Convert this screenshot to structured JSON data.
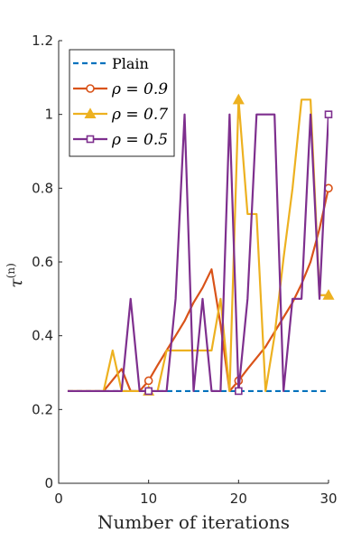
{
  "chart_data": {
    "type": "line",
    "title": "",
    "xlabel": "Number of iterations",
    "ylabel": "τ",
    "ylabel_superscript": "(n)",
    "xlim": [
      0,
      30
    ],
    "ylim": [
      0,
      1.2
    ],
    "xticks": [
      "0",
      "10",
      "20",
      "30"
    ],
    "yticks": [
      "0",
      "0.2",
      "0.4",
      "0.6",
      "0.8",
      "1",
      "1.2"
    ],
    "grid": false,
    "legend_position": "top-left",
    "series": [
      {
        "name": "Plain",
        "color": "#0072BD",
        "style": "dashed",
        "marker": "none",
        "x": [
          1,
          30
        ],
        "y": [
          0.25,
          0.25
        ]
      },
      {
        "name": "ρ = 0.9",
        "color": "#D95319",
        "style": "solid",
        "marker": "circle",
        "x": [
          1,
          2,
          3,
          4,
          5,
          6,
          7,
          8,
          9,
          10,
          11,
          12,
          13,
          14,
          15,
          16,
          17,
          18,
          19,
          20,
          21,
          22,
          23,
          24,
          25,
          26,
          27,
          28,
          29,
          30
        ],
        "y": [
          0.25,
          0.25,
          0.25,
          0.25,
          0.25,
          0.28,
          0.31,
          0.25,
          0.25,
          0.278,
          0.32,
          0.36,
          0.4,
          0.44,
          0.49,
          0.53,
          0.58,
          0.43,
          0.25,
          0.278,
          0.31,
          0.34,
          0.37,
          0.41,
          0.45,
          0.49,
          0.54,
          0.6,
          0.69,
          0.8
        ],
        "marker_indices": [
          9,
          19,
          29
        ]
      },
      {
        "name": "ρ = 0.7",
        "color": "#EDB120",
        "style": "solid",
        "marker": "triangle",
        "x": [
          1,
          2,
          3,
          4,
          5,
          6,
          7,
          8,
          9,
          10,
          11,
          12,
          13,
          14,
          15,
          16,
          17,
          18,
          19,
          20,
          21,
          22,
          23,
          24,
          25,
          26,
          27,
          28,
          29,
          30
        ],
        "y": [
          0.25,
          0.25,
          0.25,
          0.25,
          0.25,
          0.36,
          0.25,
          0.25,
          0.25,
          0.25,
          0.25,
          0.36,
          0.36,
          0.36,
          0.36,
          0.36,
          0.36,
          0.5,
          0.25,
          1.04,
          0.73,
          0.73,
          0.25,
          0.4,
          0.61,
          0.8,
          1.04,
          1.04,
          0.51,
          0.51
        ],
        "marker_indices": [
          9,
          19,
          29
        ]
      },
      {
        "name": "ρ = 0.5",
        "color": "#7E2F8E",
        "style": "solid",
        "marker": "square",
        "x": [
          1,
          2,
          3,
          4,
          5,
          6,
          7,
          8,
          9,
          10,
          11,
          12,
          13,
          14,
          15,
          16,
          17,
          18,
          19,
          20,
          21,
          22,
          23,
          24,
          25,
          26,
          27,
          28,
          29,
          30
        ],
        "y": [
          0.25,
          0.25,
          0.25,
          0.25,
          0.25,
          0.25,
          0.25,
          0.5,
          0.25,
          0.25,
          0.25,
          0.25,
          0.5,
          1.0,
          0.25,
          0.5,
          0.25,
          0.25,
          1.0,
          0.25,
          0.5,
          1.0,
          1.0,
          1.0,
          0.25,
          0.5,
          0.5,
          1.0,
          0.5,
          1.0
        ],
        "marker_indices": [
          9,
          19,
          29
        ]
      }
    ]
  }
}
